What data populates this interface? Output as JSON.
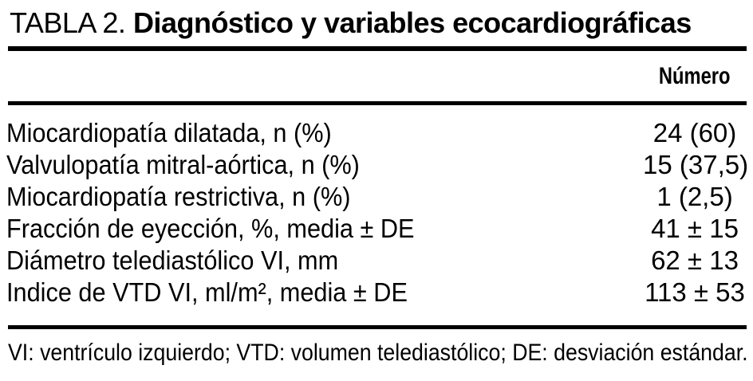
{
  "title": {
    "prefix": "TABLA 2.",
    "text": "Diagnóstico y variables ecocardiográficas"
  },
  "table": {
    "value_header": "Número",
    "rows": [
      {
        "label": "Miocardiopatía dilatada, n (%)",
        "value": "24 (60)"
      },
      {
        "label": "Valvulopatía mitral-aórtica, n (%)",
        "value": "15 (37,5)"
      },
      {
        "label": "Miocardiopatía restrictiva, n (%)",
        "value": "1 (2,5)"
      },
      {
        "label": "Fracción de eyección, %, media ± DE",
        "value": "41 ± 15"
      },
      {
        "label": "Diámetro telediastólico VI, mm",
        "value": "62 ± 13"
      },
      {
        "label": "Indice de VTD VI, ml/m², media ± DE",
        "value": "113 ± 53"
      }
    ]
  },
  "footnote": "VI: ventrículo izquierdo; VTD: volumen telediastólico; DE: desviación estándar.",
  "colors": {
    "text": "#000000",
    "background": "#ffffff",
    "rule": "#000000"
  }
}
